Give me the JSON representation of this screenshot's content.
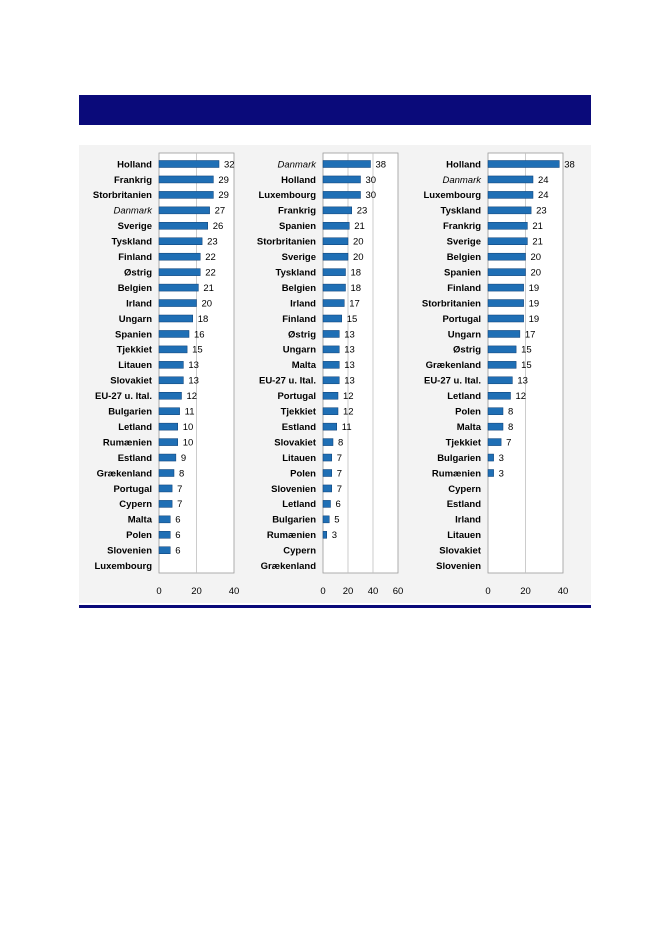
{
  "colors": {
    "banner": "#0a0a7a",
    "bar": "#1f6fb5",
    "grid": "#bfbfbf",
    "frame": "#9a9a9a"
  },
  "chart_data": [
    {
      "type": "bar",
      "orientation": "horizontal",
      "categories": [
        "Holland",
        "Frankrig",
        "Storbritanien",
        "Danmark",
        "Sverige",
        "Tyskland",
        "Finland",
        "Østrig",
        "Belgien",
        "Irland",
        "Ungarn",
        "Spanien",
        "Tjekkiet",
        "Litauen",
        "Slovakiet",
        "EU-27 u. Ital.",
        "Bulgarien",
        "Letland",
        "Rumænien",
        "Estland",
        "Grækenland",
        "Portugal",
        "Cypern",
        "Malta",
        "Polen",
        "Slovenien",
        "Luxembourg"
      ],
      "values": [
        32,
        29,
        29,
        27,
        26,
        23,
        22,
        22,
        21,
        20,
        18,
        16,
        15,
        13,
        13,
        12,
        11,
        10,
        10,
        9,
        8,
        7,
        7,
        6,
        6,
        6,
        null
      ],
      "data_labels": [
        "32",
        "29",
        "29",
        "27",
        "26",
        "23",
        "22",
        "22",
        "21",
        "20",
        "18",
        "16",
        "15",
        "13",
        "13",
        "12",
        "11",
        "10",
        "10",
        "9",
        "8",
        "7",
        "7",
        "6",
        "6",
        "6",
        ""
      ],
      "highlight_category": "Danmark",
      "xlim": [
        0,
        40
      ],
      "xticks": [
        "0",
        "20",
        "40"
      ],
      "grid": true
    },
    {
      "type": "bar",
      "orientation": "horizontal",
      "categories": [
        "Danmark",
        "Holland",
        "Luxembourg",
        "Frankrig",
        "Spanien",
        "Storbritanien",
        "Sverige",
        "Tyskland",
        "Belgien",
        "Irland",
        "Finland",
        "Østrig",
        "Ungarn",
        "Malta",
        "EU-27 u. Ital.",
        "Portugal",
        "Tjekkiet",
        "Estland",
        "Slovakiet",
        "Litauen",
        "Polen",
        "Slovenien",
        "Letland",
        "Bulgarien",
        "Rumænien",
        "Cypern",
        "Grækenland"
      ],
      "values": [
        38,
        30,
        30,
        23,
        21,
        20,
        20,
        18,
        18,
        17,
        15,
        13,
        13,
        13,
        13,
        12,
        12,
        11,
        8,
        7,
        7,
        7,
        6,
        5,
        3,
        null,
        null
      ],
      "data_labels": [
        "38",
        "30",
        "30",
        "23",
        "21",
        "20",
        "20",
        "18",
        "18",
        "17",
        "15",
        "13",
        "13",
        "13",
        "13",
        "12",
        "12",
        "11",
        "8",
        "7",
        "7",
        "7",
        "6",
        "5",
        "3",
        "",
        ""
      ],
      "highlight_category": "Danmark",
      "xlim": [
        0,
        60
      ],
      "xticks": [
        "0",
        "20",
        "40",
        "60"
      ],
      "grid": true
    },
    {
      "type": "bar",
      "orientation": "horizontal",
      "categories": [
        "Holland",
        "Danmark",
        "Luxembourg",
        "Tyskland",
        "Frankrig",
        "Sverige",
        "Belgien",
        "Spanien",
        "Finland",
        "Storbritanien",
        "Portugal",
        "Ungarn",
        "Østrig",
        "Grækenland",
        "EU-27 u. Ital.",
        "Letland",
        "Polen",
        "Malta",
        "Tjekkiet",
        "Bulgarien",
        "Rumænien",
        "Cypern",
        "Estland",
        "Irland",
        "Litauen",
        "Slovakiet",
        "Slovenien"
      ],
      "values": [
        38,
        24,
        24,
        23,
        21,
        21,
        20,
        20,
        19,
        19,
        19,
        17,
        15,
        15,
        13,
        12,
        8,
        8,
        7,
        3,
        3,
        null,
        null,
        null,
        null,
        null,
        null
      ],
      "data_labels": [
        "38",
        "24",
        "24",
        "23",
        "21",
        "21",
        "20",
        "20",
        "19",
        "19",
        "19",
        "17",
        "15",
        "15",
        "13",
        "12",
        "8",
        "8",
        "7",
        "3",
        "3",
        "",
        "",
        "",
        "",
        "",
        ""
      ],
      "highlight_category": "Danmark",
      "xlim": [
        0,
        40
      ],
      "xticks": [
        "0",
        "20",
        "40"
      ],
      "grid": true
    }
  ]
}
